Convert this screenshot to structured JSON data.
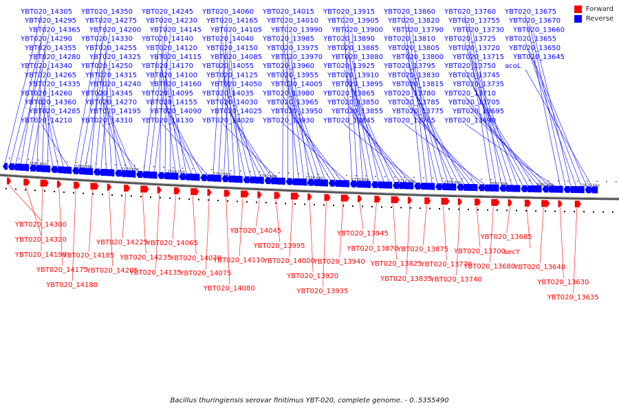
{
  "legend": {
    "forward_label": "Forward",
    "reverse_label": "Reverse",
    "forward_color": "#ff0000",
    "reverse_color": "#0000ff"
  },
  "caption": "Bacillus thuringiensis serovar finitimus YBT-020, complete genome. - 0..5355490",
  "track": {
    "line_color": "#555555",
    "tick_labels": [
      "2790 kbp",
      "2780 kbp",
      "2770 kbp",
      "2760 kbp",
      "2750 kbp",
      "2740 kbp",
      "2730 kbp",
      "2720 kbp",
      "2710 kbp",
      "2700 kbp",
      "2690 kbp",
      "2680 kbp",
      "2670 kbp"
    ]
  },
  "reverse_genes": [
    "YBT020_14305",
    "YBT020_14295",
    "YBT020_14365",
    "YBT020_14290",
    "YBT020_14355",
    "YBT020_14280",
    "YBT020_14340",
    "YBT020_14265",
    "YBT020_14335",
    "YBT020_14260",
    "YBT020_14360",
    "YBT020_14285",
    "YBT020_14210",
    "YBT020_14350",
    "YBT020_14275",
    "YBT020_14200",
    "YBT020_14330",
    "YBT020_14255",
    "YBT020_14325",
    "YBT020_14250",
    "YBT020_14315",
    "YBT020_14240",
    "YBT020_14345",
    "YBT020_14270",
    "YBT020_14195",
    "YBT020_14310",
    "YBT020_14245",
    "YBT020_14230",
    "YBT020_14145",
    "YBT020_14140",
    "YBT020_14120",
    "YBT020_14115",
    "YBT020_14170",
    "YBT020_14100",
    "YBT020_14160",
    "YBT020_14095",
    "YBT020_14155",
    "YBT020_14090",
    "YBT020_14130",
    "YBT020_14060",
    "YBT020_14165",
    "YBT020_14105",
    "YBT020_14040",
    "YBT020_14150",
    "YBT020_14085",
    "YBT020_14055",
    "YBT020_14125",
    "YBT020_14050",
    "YBT020_14035",
    "YBT020_14030",
    "YBT020_14025",
    "YBT020_14020",
    "YBT020_14015",
    "YBT020_14010",
    "YBT020_13990",
    "YBT020_13985",
    "YBT020_13975",
    "YBT020_13970",
    "YBT020_13960",
    "YBT020_13955",
    "YBT020_14005",
    "YBT020_13980",
    "YBT020_13965",
    "YBT020_13950",
    "YBT020_13930",
    "YBT020_13915",
    "YBT020_13905",
    "YBT020_13900",
    "YBT020_13890",
    "YBT020_13885",
    "YBT020_13880",
    "YBT020_13925",
    "YBT020_13910",
    "YBT020_13895",
    "YBT020_13865",
    "YBT020_13850",
    "YBT020_13855",
    "YBT020_13845",
    "YBT020_13860",
    "YBT020_13820",
    "YBT020_13790",
    "YBT020_13810",
    "YBT020_13805",
    "YBT020_13800",
    "YBT020_13795",
    "YBT020_13830",
    "YBT020_13815",
    "YBT020_13780",
    "YBT020_13785",
    "YBT020_13775",
    "YBT020_13765",
    "YBT020_13760",
    "YBT020_13755",
    "YBT020_13730",
    "YBT020_13725",
    "YBT020_13720",
    "YBT020_13715",
    "YBT020_13750",
    "YBT020_13745",
    "YBT020_13735",
    "YBT020_13710",
    "YBT020_13705",
    "YBT020_13695",
    "YBT020_13690",
    "YBT020_13675",
    "YBT020_13670",
    "YBT020_13660",
    "YBT020_13655",
    "YBT020_13650",
    "YBT020_13645",
    "acoL"
  ],
  "forward_genes": [
    "YBT020_14300",
    "YBT020_14320",
    "YBT020_14190",
    "YBT020_14175",
    "YBT020_14180",
    "YBT020_14185",
    "YBT020_14205",
    "YBT020_14225",
    "YBT020_14235",
    "YBT020_14135",
    "YBT020_14065",
    "YBT020_14070",
    "YBT020_14075",
    "YBT020_14080",
    "YBT020_14110",
    "YBT020_14045",
    "YBT020_13995",
    "YBT020_14000",
    "YBT020_13920",
    "YBT020_13935",
    "YBT020_13940",
    "YBT020_13945",
    "YBT020_13870",
    "YBT020_13825",
    "YBT020_13835",
    "YBT020_13875",
    "YBT020_13770",
    "YBT020_13740",
    "YBT020_13700",
    "YBT020_13680",
    "YBT020_13685",
    "secY",
    "YBT020_13640",
    "YBT020_13630",
    "YBT020_13635"
  ]
}
